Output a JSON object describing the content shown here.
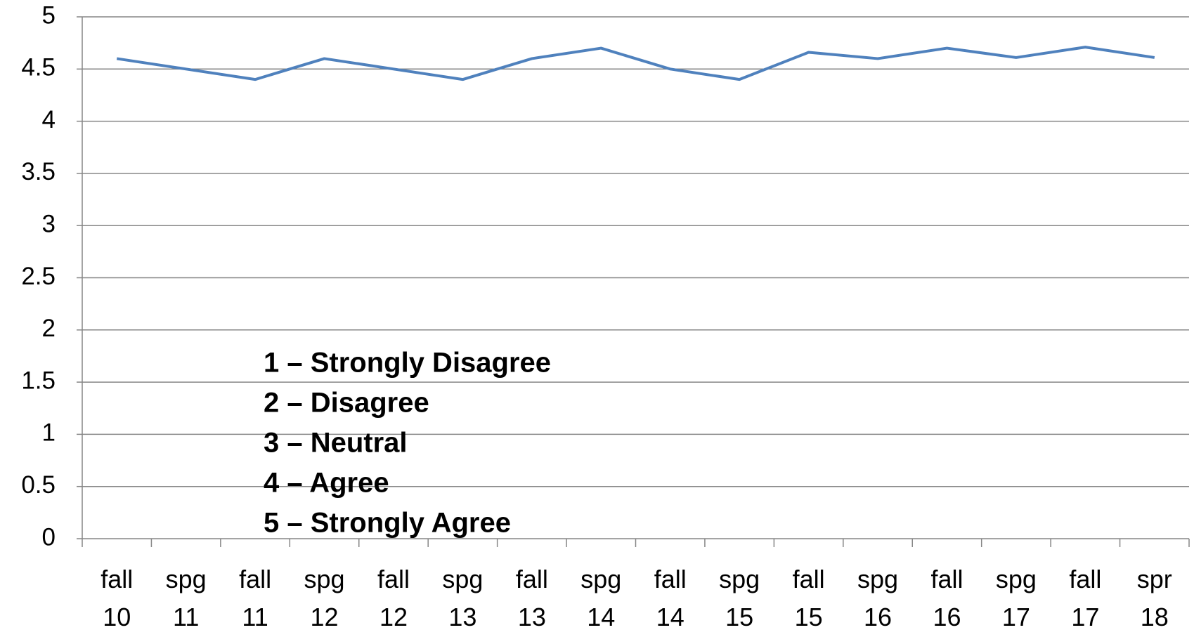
{
  "chart_data": {
    "type": "line",
    "categories": [
      "fall 10",
      "spg 11",
      "fall 11",
      "spg 12",
      "fall 12",
      "spg 13",
      "fall 13",
      "spg 14",
      "fall 14",
      "spg 15",
      "fall 15",
      "spg 16",
      "fall 16",
      "spg 17",
      "fall 17",
      "spr 18"
    ],
    "series": [
      {
        "color": "#4f81bd",
        "values": [
          4.6,
          4.5,
          4.4,
          4.6,
          4.5,
          4.4,
          4.6,
          4.7,
          4.5,
          4.4,
          4.66,
          4.6,
          4.7,
          4.61,
          4.71,
          4.61
        ]
      }
    ],
    "ylim": [
      0,
      5
    ],
    "yticks": [
      0,
      0.5,
      1,
      1.5,
      2,
      2.5,
      3,
      3.5,
      4,
      4.5,
      5
    ],
    "grid": true,
    "annotations": [
      "1 – Strongly Disagree",
      "2 – Disagree",
      "3 – Neutral",
      "4 – Agree",
      "5 – Strongly Agree"
    ]
  }
}
